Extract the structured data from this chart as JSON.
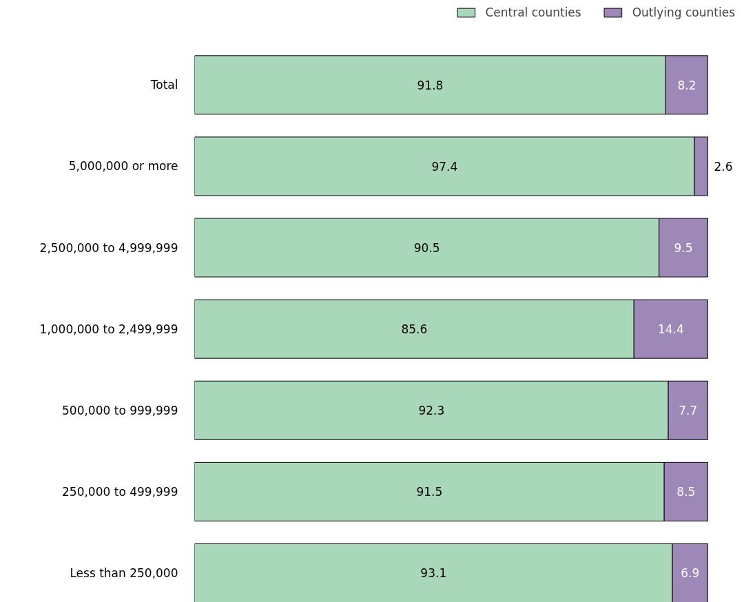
{
  "chart_data": {
    "type": "bar",
    "orientation": "horizontal",
    "stacked": true,
    "data_labels": true,
    "legend": "top right",
    "categories": [
      "Total",
      "5,000,000 or more",
      "2,500,000 to 4,999,999",
      "1,000,000 to 2,499,999",
      "500,000 to 999,999",
      "250,000 to 499,999",
      "Less than 250,000"
    ],
    "series": [
      {
        "name": "Central counties",
        "color": "#a8d8b9",
        "values": [
          91.8,
          97.4,
          90.5,
          85.6,
          92.3,
          91.5,
          93.1
        ]
      },
      {
        "name": "Outlying counties",
        "color": "#9e88b8",
        "values": [
          8.2,
          2.6,
          9.5,
          14.4,
          7.7,
          8.5,
          6.9
        ]
      }
    ]
  }
}
